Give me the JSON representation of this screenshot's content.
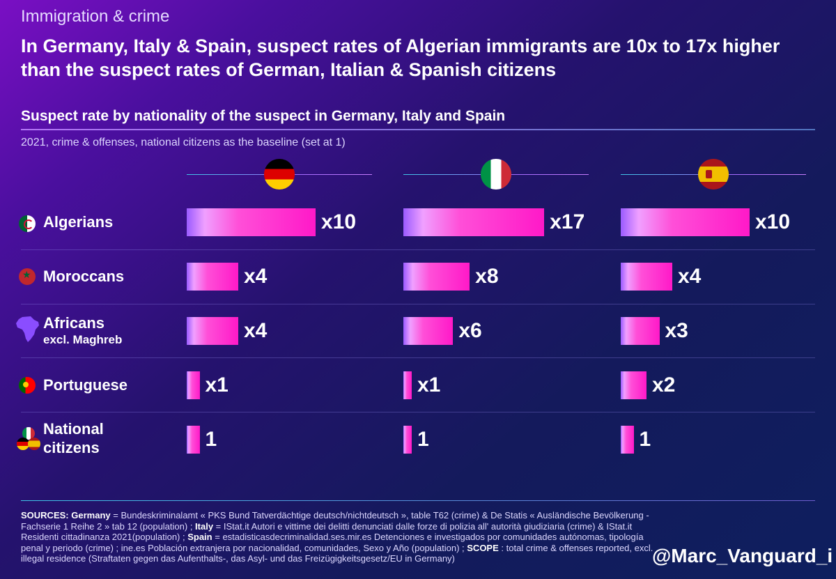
{
  "header": {
    "topic": "Immigration & crime",
    "headline": "In Germany, Italy & Spain, suspect rates of Algerian immigrants are 10x to 17x higher than the suspect rates of German, Italian & Spanish citizens",
    "subtitle": "Suspect rate by nationality of the suspect in Germany, Italy and Spain",
    "note": "2021, crime & offenses, national citizens as the baseline (set at 1)"
  },
  "chart_data": {
    "type": "bar",
    "orientation": "horizontal",
    "title": "Suspect rate by nationality of the suspect in Germany, Italy and Spain",
    "countries": [
      "Germany",
      "Italy",
      "Spain"
    ],
    "countries_shown_as": "flag icons",
    "categories": [
      "Algerians",
      "Moroccans",
      "Africans excl. Maghreb",
      "Portuguese",
      "National citizens"
    ],
    "series": [
      {
        "values": [
          10,
          4,
          4,
          1,
          1
        ],
        "labels": [
          "x10",
          "x4",
          "x4",
          "x1",
          "1"
        ]
      },
      {
        "values": [
          17,
          8,
          6,
          1,
          1
        ],
        "labels": [
          "x17",
          "x8",
          "x6",
          "x1",
          "1"
        ]
      },
      {
        "values": [
          10,
          4,
          3,
          2,
          1
        ],
        "labels": [
          "x10",
          "x4",
          "x3",
          "x2",
          "1"
        ]
      }
    ],
    "xlim": [
      0,
      17
    ],
    "grid": false
  },
  "rows": [
    {
      "label": "Algerians",
      "sub": ""
    },
    {
      "label": "Moroccans",
      "sub": ""
    },
    {
      "label": "Africans",
      "sub": "excl. Maghreb"
    },
    {
      "label": "Portuguese",
      "sub": ""
    },
    {
      "label": "National",
      "sub": "citizens"
    }
  ],
  "icons": [
    "algeria-flag-icon",
    "morocco-flag-icon",
    "africa-map-icon",
    "portugal-flag-icon",
    "national-flags-icon"
  ],
  "sources": {
    "sources_label": "SOURCES:",
    "germany_label": "Germany",
    "germany_text": " = Bundeskriminalamt « PKS Bund Tatverdächtige deutsch/nichtdeutsch », table T62 (crime) & De Statis « Ausländische Bevölkerung - Fachserie 1 Reihe 2 » tab 12 (population) ; ",
    "italy_label": "Italy",
    "italy_text": " = IStat.it Autori e vittime dei delitti denunciati dalle forze di polizia all' autorità giudiziaria (crime) & IStat.it Residenti cittadinanza 2021(population) ; ",
    "spain_label": "Spain",
    "spain_text": " = estadisticasdecriminalidad.ses.mir.es Detenciones e investigados por comunidades autónomas, tipología penal y periodo (crime) ; ine.es Población extranjera por nacionalidad, comunidades, Sexo y Año (population) ; ",
    "scope_label": "SCOPE",
    "scope_text": " : total crime & offenses reported, excl. illegal residence (Straftaten gegen das Aufenthalts-, das Asyl- und das Freizügigkeitsgesetz/EU in Germany)"
  },
  "handle": "@Marc_Vanguard_i",
  "colors": {
    "bar_start": "#9a5bff",
    "bar_end": "#ff19c8",
    "background_dark": "#0e1f5e",
    "background_purple": "#7a0fc4"
  }
}
